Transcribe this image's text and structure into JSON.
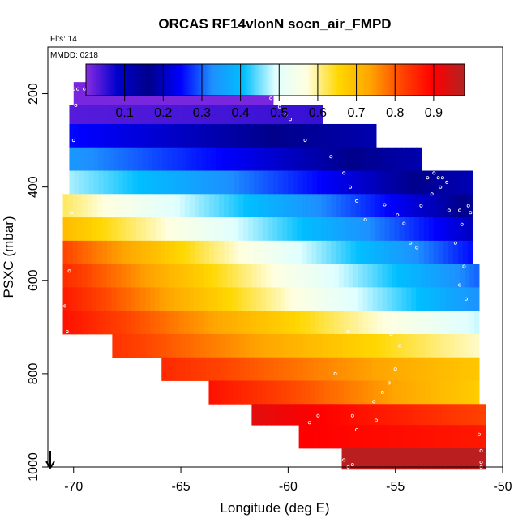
{
  "chart_data": {
    "type": "heatmap",
    "title": "ORCAS RF14vlonN socn_air_FMPD",
    "flights_label": "Flts: 14",
    "date_label": "MMDD: 0218",
    "xlabel": "Longitude (deg E)",
    "ylabel": "PSXC (mbar)",
    "xlim": [
      -71.2,
      -50
    ],
    "ylim": [
      1000,
      100
    ],
    "x_ticks": [
      -70,
      -65,
      -60,
      -55,
      -50
    ],
    "x_tick_labels": [
      "-70",
      "-65",
      "-60",
      "-55",
      "-50"
    ],
    "y_ticks": [
      200,
      400,
      600,
      800,
      1000
    ],
    "y_tick_labels": [
      "200",
      "400",
      "600",
      "800",
      "1000"
    ],
    "colorbar": {
      "range": [
        0,
        0.98
      ],
      "ticks": [
        0.1,
        0.2,
        0.3,
        0.4,
        0.5,
        0.6,
        0.7,
        0.8,
        0.9
      ],
      "tick_labels": [
        "0.1",
        "0.2",
        "0.3",
        "0.4",
        "0.5",
        "0.6",
        "0.7",
        "0.8",
        "0.9"
      ]
    },
    "colorscale": [
      "#8a2be2",
      "#0000cd",
      "#00008b",
      "#0000ff",
      "#1e90ff",
      "#00bfff",
      "#e0ffff",
      "#ffffe0",
      "#ffd700",
      "#ffa500",
      "#ff4500",
      "#ff0000",
      "#b22222"
    ],
    "bands": [
      {
        "p_top": 175,
        "p_bot": 225,
        "lon_min": -70.0,
        "lon_max": -60.7,
        "v_west": 0.01,
        "v_east": 0.01
      },
      {
        "p_top": 225,
        "p_bot": 265,
        "lon_min": -70.2,
        "lon_max": -58.4,
        "v_west": 0.03,
        "v_east": 0.05
      },
      {
        "p_top": 265,
        "p_bot": 315,
        "lon_min": -70.2,
        "lon_max": -55.9,
        "v_west": 0.25,
        "v_east": 0.12
      },
      {
        "p_top": 315,
        "p_bot": 365,
        "lon_min": -70.2,
        "lon_max": -53.8,
        "v_west": 0.34,
        "v_east": 0.12
      },
      {
        "p_top": 365,
        "p_bot": 415,
        "lon_min": -70.2,
        "lon_max": -51.4,
        "v_west": 0.47,
        "v_east": 0.11
      },
      {
        "p_top": 415,
        "p_bot": 465,
        "lon_min": -70.5,
        "lon_max": -51.4,
        "v_west": 0.62,
        "v_east": 0.15
      },
      {
        "p_top": 465,
        "p_bot": 515,
        "lon_min": -70.5,
        "lon_max": -51.4,
        "v_west": 0.7,
        "v_east": 0.2
      },
      {
        "p_top": 515,
        "p_bot": 565,
        "lon_min": -70.5,
        "lon_max": -51.4,
        "v_west": 0.82,
        "v_east": 0.25
      },
      {
        "p_top": 565,
        "p_bot": 615,
        "lon_min": -70.5,
        "lon_max": -51.1,
        "v_west": 0.85,
        "v_east": 0.3
      },
      {
        "p_top": 615,
        "p_bot": 665,
        "lon_min": -70.5,
        "lon_max": -51.1,
        "v_west": 0.87,
        "v_east": 0.33
      },
      {
        "p_top": 665,
        "p_bot": 715,
        "lon_min": -70.5,
        "lon_max": -51.1,
        "v_west": 0.88,
        "v_east": 0.48
      },
      {
        "p_top": 715,
        "p_bot": 765,
        "lon_min": -68.2,
        "lon_max": -51.1,
        "v_west": 0.84,
        "v_east": 0.58
      },
      {
        "p_top": 765,
        "p_bot": 815,
        "lon_min": -65.9,
        "lon_max": -51.1,
        "v_west": 0.85,
        "v_east": 0.68
      },
      {
        "p_top": 815,
        "p_bot": 865,
        "lon_min": -63.7,
        "lon_max": -51.1,
        "v_west": 0.88,
        "v_east": 0.67
      },
      {
        "p_top": 865,
        "p_bot": 910,
        "lon_min": -61.7,
        "lon_max": -50.8,
        "v_west": 0.93,
        "v_east": 0.82
      },
      {
        "p_top": 910,
        "p_bot": 960,
        "lon_min": -59.5,
        "lon_max": -50.8,
        "v_west": 0.9,
        "v_east": 0.87
      },
      {
        "p_top": 960,
        "p_bot": 1005,
        "lon_min": -57.5,
        "lon_max": -50.8,
        "v_west": 0.97,
        "v_east": 0.97
      }
    ],
    "flight_track_points": [
      [
        -70.0,
        190
      ],
      [
        -69.8,
        190
      ],
      [
        -69.5,
        190
      ],
      [
        -69.2,
        190
      ],
      [
        -68.9,
        190
      ],
      [
        -68.6,
        190
      ],
      [
        -68.3,
        190
      ],
      [
        -68.0,
        190
      ],
      [
        -67.7,
        190
      ],
      [
        -67.4,
        190
      ],
      [
        -67.1,
        190
      ],
      [
        -66.8,
        190
      ],
      [
        -66.5,
        190
      ],
      [
        -66.2,
        190
      ],
      [
        -65.9,
        190
      ],
      [
        -65.6,
        190
      ],
      [
        -65.3,
        190
      ],
      [
        -65.0,
        190
      ],
      [
        -64.7,
        190
      ],
      [
        -64.4,
        190
      ],
      [
        -64.1,
        190
      ],
      [
        -63.8,
        190
      ],
      [
        -63.5,
        190
      ],
      [
        -63.2,
        190
      ],
      [
        -62.9,
        190
      ],
      [
        -62.6,
        190
      ],
      [
        -62.3,
        190
      ],
      [
        -62.0,
        190
      ],
      [
        -61.6,
        192
      ],
      [
        -61.2,
        198
      ],
      [
        -60.8,
        210
      ],
      [
        -60.4,
        228
      ],
      [
        -60.1,
        245
      ],
      [
        -59.9,
        255
      ],
      [
        -69.9,
        225
      ],
      [
        -70.0,
        300
      ],
      [
        -59.2,
        300
      ],
      [
        -58.0,
        335
      ],
      [
        -57.4,
        370
      ],
      [
        -57.1,
        400
      ],
      [
        -56.8,
        430
      ],
      [
        -56.4,
        470
      ],
      [
        -55.5,
        438
      ],
      [
        -54.9,
        460
      ],
      [
        -54.6,
        478
      ],
      [
        -54.3,
        520
      ],
      [
        -54.0,
        530
      ],
      [
        -53.5,
        380
      ],
      [
        -53.2,
        370
      ],
      [
        -53.0,
        380
      ],
      [
        -52.8,
        380
      ],
      [
        -52.6,
        390
      ],
      [
        -52.9,
        400
      ],
      [
        -53.3,
        415
      ],
      [
        -53.8,
        440
      ],
      [
        -52.5,
        450
      ],
      [
        -52.0,
        450
      ],
      [
        -51.6,
        440
      ],
      [
        -51.5,
        455
      ],
      [
        -51.9,
        480
      ],
      [
        -52.2,
        520
      ],
      [
        -51.8,
        570
      ],
      [
        -52.0,
        610
      ],
      [
        -51.7,
        640
      ],
      [
        -70.3,
        710
      ],
      [
        -70.4,
        655
      ],
      [
        -70.2,
        580
      ],
      [
        -70.1,
        455
      ],
      [
        -58.0,
        640
      ],
      [
        -57.2,
        710
      ],
      [
        -55.5,
        680
      ],
      [
        -55.2,
        715
      ],
      [
        -54.8,
        740
      ],
      [
        -55.0,
        790
      ],
      [
        -55.3,
        820
      ],
      [
        -55.6,
        840
      ],
      [
        -56.0,
        860
      ],
      [
        -57.0,
        890
      ],
      [
        -58.6,
        890
      ],
      [
        -59.0,
        905
      ],
      [
        -56.8,
        920
      ],
      [
        -55.9,
        900
      ],
      [
        -57.8,
        800
      ],
      [
        -57.4,
        985
      ],
      [
        -57.2,
        1000
      ],
      [
        -57.0,
        995
      ],
      [
        -51.0,
        965
      ],
      [
        -51.0,
        990
      ],
      [
        -51.0,
        1000
      ],
      [
        -51.1,
        930
      ]
    ]
  }
}
